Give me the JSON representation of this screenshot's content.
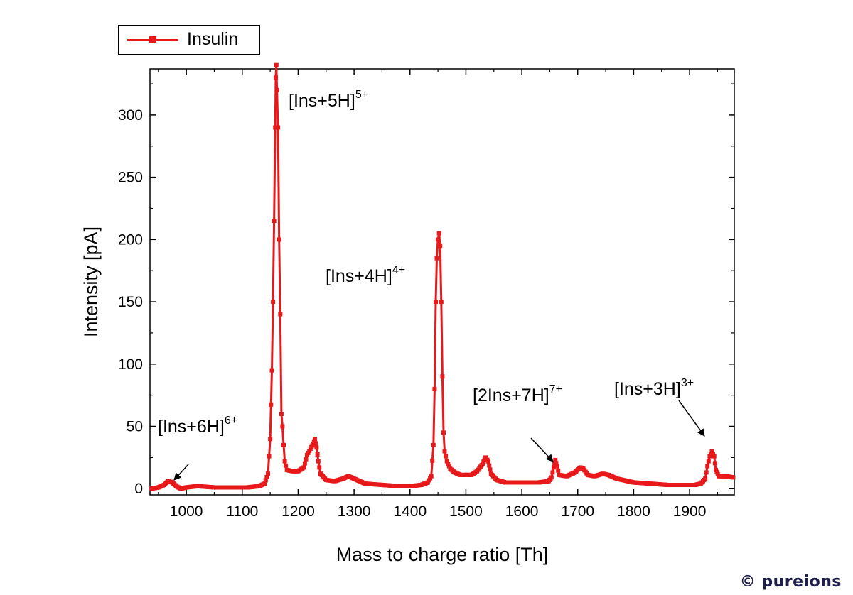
{
  "watermark": "© pureions",
  "chart_data": {
    "type": "line",
    "title": "",
    "xlabel": "Mass to charge ratio [Th]",
    "ylabel": "Intensity [pA]",
    "xlim": [
      935,
      1980
    ],
    "ylim": [
      -5,
      337
    ],
    "xticks": [
      1000,
      1100,
      1200,
      1300,
      1400,
      1500,
      1600,
      1700,
      1800,
      1900
    ],
    "yticks": [
      0,
      50,
      100,
      150,
      200,
      250,
      300
    ],
    "grid": false,
    "legend_position": "top-left",
    "color": "#e8191b",
    "series": [
      {
        "name": "Insulin",
        "points": [
          [
            938,
            0
          ],
          [
            950,
            1
          ],
          [
            960,
            3
          ],
          [
            968,
            6
          ],
          [
            975,
            5
          ],
          [
            982,
            2
          ],
          [
            990,
            0
          ],
          [
            1000,
            1
          ],
          [
            1020,
            2
          ],
          [
            1050,
            1
          ],
          [
            1080,
            1
          ],
          [
            1110,
            1
          ],
          [
            1130,
            2
          ],
          [
            1140,
            4
          ],
          [
            1146,
            12
          ],
          [
            1150,
            40
          ],
          [
            1153,
            95
          ],
          [
            1155,
            150
          ],
          [
            1157,
            215
          ],
          [
            1159,
            290
          ],
          [
            1160,
            330
          ],
          [
            1161,
            340
          ],
          [
            1162,
            320
          ],
          [
            1164,
            290
          ],
          [
            1166,
            200
          ],
          [
            1168,
            140
          ],
          [
            1170,
            60
          ],
          [
            1172,
            50
          ],
          [
            1174,
            35
          ],
          [
            1176,
            22
          ],
          [
            1180,
            15
          ],
          [
            1190,
            14
          ],
          [
            1200,
            14
          ],
          [
            1210,
            17
          ],
          [
            1216,
            27
          ],
          [
            1222,
            32
          ],
          [
            1227,
            36
          ],
          [
            1230,
            40
          ],
          [
            1233,
            33
          ],
          [
            1236,
            22
          ],
          [
            1240,
            12
          ],
          [
            1250,
            7
          ],
          [
            1265,
            6
          ],
          [
            1280,
            8
          ],
          [
            1290,
            10
          ],
          [
            1300,
            8
          ],
          [
            1320,
            4
          ],
          [
            1350,
            3
          ],
          [
            1380,
            2
          ],
          [
            1400,
            2
          ],
          [
            1420,
            3
          ],
          [
            1432,
            5
          ],
          [
            1438,
            10
          ],
          [
            1442,
            35
          ],
          [
            1444,
            80
          ],
          [
            1446,
            150
          ],
          [
            1448,
            185
          ],
          [
            1450,
            200
          ],
          [
            1452,
            205
          ],
          [
            1454,
            195
          ],
          [
            1456,
            150
          ],
          [
            1458,
            90
          ],
          [
            1460,
            45
          ],
          [
            1462,
            30
          ],
          [
            1466,
            22
          ],
          [
            1472,
            16
          ],
          [
            1480,
            13
          ],
          [
            1490,
            11
          ],
          [
            1500,
            11
          ],
          [
            1510,
            11
          ],
          [
            1520,
            14
          ],
          [
            1530,
            20
          ],
          [
            1535,
            25
          ],
          [
            1540,
            22
          ],
          [
            1545,
            12
          ],
          [
            1555,
            7
          ],
          [
            1570,
            5
          ],
          [
            1600,
            5
          ],
          [
            1630,
            5
          ],
          [
            1648,
            6
          ],
          [
            1653,
            9
          ],
          [
            1657,
            17
          ],
          [
            1660,
            23
          ],
          [
            1663,
            18
          ],
          [
            1667,
            11
          ],
          [
            1680,
            10
          ],
          [
            1695,
            13
          ],
          [
            1705,
            17
          ],
          [
            1710,
            16
          ],
          [
            1718,
            11
          ],
          [
            1730,
            10
          ],
          [
            1745,
            12
          ],
          [
            1755,
            11
          ],
          [
            1770,
            8
          ],
          [
            1800,
            5
          ],
          [
            1830,
            4
          ],
          [
            1860,
            3
          ],
          [
            1890,
            3
          ],
          [
            1910,
            3
          ],
          [
            1920,
            4
          ],
          [
            1928,
            8
          ],
          [
            1932,
            18
          ],
          [
            1936,
            26
          ],
          [
            1940,
            30
          ],
          [
            1944,
            26
          ],
          [
            1947,
            15
          ],
          [
            1952,
            10
          ],
          [
            1965,
            10
          ],
          [
            1978,
            9
          ]
        ]
      }
    ],
    "annotations": [
      {
        "base": "[Ins+5H]",
        "sup": "5+"
      },
      {
        "base": "[Ins+4H]",
        "sup": "4+"
      },
      {
        "base": "[Ins+6H]",
        "sup": "6+"
      },
      {
        "base": "[2Ins+7H]",
        "sup": "7+"
      },
      {
        "base": "[Ins+3H]",
        "sup": "3+"
      }
    ]
  }
}
